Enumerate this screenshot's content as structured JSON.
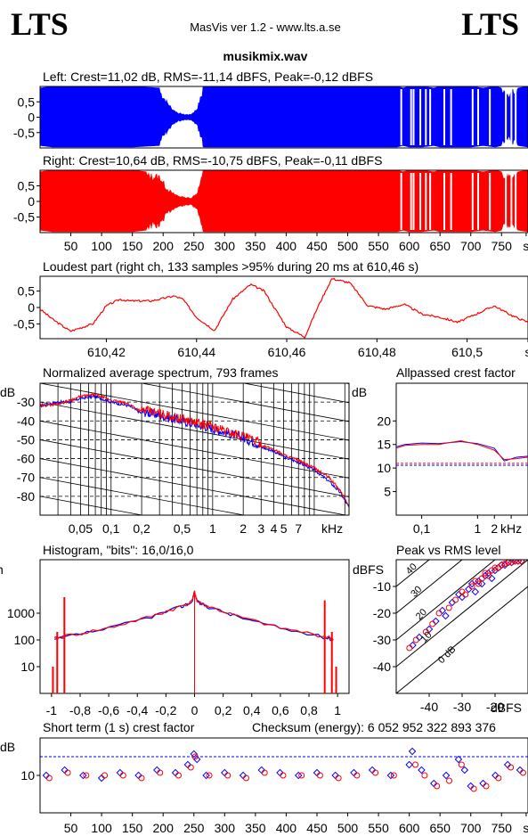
{
  "header": {
    "logo_left": "LTS",
    "logo_right": "LTS",
    "app_title": "MasVis ver 1.2 - www.lts.a.se",
    "file_name": "musikmix.wav"
  },
  "colors": {
    "left": "#0000ff",
    "right": "#ff0000",
    "axis": "#000000",
    "grid": "#000000"
  },
  "chart_data": [
    {
      "id": "left-waveform",
      "type": "area",
      "title": "Left: Crest=11,02 dB, RMS=-11,14 dBFS, Peak=-0,12 dBFS",
      "ytick_labels": [
        "0,5",
        "0",
        "-0,5"
      ],
      "yticks": [
        0.5,
        0,
        -0.5
      ],
      "xlim": [
        0,
        793
      ],
      "ylim": [
        -1,
        1
      ],
      "envelope": {
        "x": [
          0,
          20,
          60,
          100,
          150,
          195,
          205,
          215,
          225,
          235,
          245,
          255,
          265,
          275,
          300,
          400,
          500,
          580,
          590,
          600,
          620,
          640,
          650,
          660,
          680,
          700,
          720,
          740,
          760,
          793
        ],
        "amplitude": [
          0.95,
          1,
          1,
          1,
          1,
          0.95,
          0.6,
          0.3,
          0.15,
          0.1,
          0.1,
          0.3,
          1,
          1,
          1,
          1,
          1,
          1,
          0.95,
          1,
          1,
          0.95,
          1,
          1,
          1,
          1,
          0.95,
          1,
          0.9,
          1
        ]
      },
      "gaps_x": [
        587,
        603,
        607,
        618,
        627,
        634,
        657,
        668,
        703,
        712,
        731,
        757,
        766,
        773
      ]
    },
    {
      "id": "right-waveform",
      "type": "area",
      "title": "Right: Crest=10,64 dB, RMS=-10,75 dBFS, Peak=-0,11 dBFS",
      "ytick_labels": [
        "0,5",
        "0",
        "-0,5"
      ],
      "yticks": [
        0.5,
        0,
        -0.5
      ],
      "xlim": [
        0,
        793
      ],
      "ylim": [
        -1,
        1
      ],
      "xtick_labels": [
        "50",
        "100",
        "150",
        "200",
        "250",
        "300",
        "350",
        "400",
        "450",
        "500",
        "550",
        "600",
        "650",
        "700",
        "750",
        "s"
      ],
      "xticks": [
        50,
        100,
        150,
        200,
        250,
        300,
        350,
        400,
        450,
        500,
        550,
        600,
        650,
        700,
        750,
        790
      ],
      "envelope": {
        "x": [
          0,
          20,
          60,
          100,
          150,
          195,
          205,
          215,
          225,
          235,
          245,
          255,
          265,
          275,
          300,
          400,
          500,
          580,
          590,
          600,
          620,
          640,
          650,
          660,
          680,
          700,
          720,
          740,
          760,
          793
        ],
        "amplitude": [
          0.95,
          1,
          1,
          1,
          1,
          0.9,
          0.5,
          0.3,
          0.2,
          0.15,
          0.12,
          0.3,
          1,
          1,
          1,
          1,
          1,
          1,
          0.95,
          1,
          1,
          0.95,
          1,
          1,
          1,
          1,
          0.95,
          1,
          0.9,
          1
        ]
      },
      "gaps_x": [
        587,
        603,
        607,
        618,
        627,
        634,
        657,
        668,
        703,
        712,
        731,
        757,
        766,
        773
      ]
    },
    {
      "id": "loudest-part",
      "type": "line",
      "title": "Loudest part (right ch, 133 samples >95% during 20 ms at 610,46 s)",
      "ytick_labels": [
        "0,5",
        "0",
        "-0,5"
      ],
      "yticks": [
        0.5,
        0,
        -0.5
      ],
      "xtick_labels": [
        "610,42",
        "610,44",
        "610,46",
        "610,48",
        "610,5",
        "s"
      ],
      "xticks": [
        610.42,
        610.44,
        610.46,
        610.48,
        610.5,
        610.5135
      ],
      "xlim": [
        610.4053,
        610.5135
      ],
      "ylim": [
        -0.95,
        0.95
      ],
      "x": [
        610.4053,
        610.408,
        610.412,
        610.417,
        610.42,
        610.423,
        610.425,
        610.43,
        610.435,
        610.437,
        610.44,
        610.444,
        610.448,
        610.452,
        610.455,
        610.457,
        610.46,
        610.464,
        610.467,
        610.47,
        610.474,
        610.478,
        610.482,
        610.486,
        610.49,
        610.494,
        610.498,
        610.502,
        610.506,
        610.51,
        610.5135
      ],
      "y": [
        -0.05,
        -0.35,
        -0.72,
        -0.5,
        0.05,
        0.25,
        0.2,
        0.2,
        0.35,
        0.25,
        -0.3,
        -0.7,
        0.25,
        0.7,
        0.5,
        0.05,
        -0.6,
        -0.9,
        0.05,
        0.88,
        0.75,
        0.05,
        -0.05,
        0.1,
        -0.2,
        -0.3,
        -0.45,
        -0.2,
        0.05,
        -0.25,
        -0.45
      ]
    },
    {
      "id": "average-spectrum",
      "type": "line",
      "title": "Normalized average spectrum, 793 frames",
      "ylabel": "dB",
      "ytick_labels": [
        "-30",
        "-40",
        "-50",
        "-60",
        "-70",
        "-80"
      ],
      "yticks": [
        -30,
        -40,
        -50,
        -60,
        -70,
        -80
      ],
      "xtick_labels": [
        "0,05",
        "0,1",
        "0,2",
        "0,5",
        "1",
        "2",
        "3",
        "4",
        "5",
        "7",
        "kHz"
      ],
      "xticks": [
        0.05,
        0.1,
        0.2,
        0.5,
        1,
        2,
        3,
        4,
        5,
        7,
        15
      ],
      "xlim": [
        0.02,
        22
      ],
      "ylim": [
        -90,
        -20
      ],
      "series": [
        {
          "color": "blue",
          "x": [
            0.02,
            0.03,
            0.04,
            0.05,
            0.07,
            0.1,
            0.15,
            0.2,
            0.3,
            0.5,
            0.7,
            1,
            1.5,
            2,
            3,
            4,
            5,
            7,
            10,
            14,
            18,
            22
          ],
          "y": [
            -32,
            -30,
            -30,
            -28,
            -27,
            -30,
            -32,
            -36,
            -38,
            -41,
            -43,
            -45,
            -48,
            -50,
            -54,
            -56,
            -59,
            -62,
            -66,
            -72,
            -78,
            -86
          ]
        },
        {
          "color": "red",
          "x": [
            0.02,
            0.03,
            0.04,
            0.05,
            0.07,
            0.1,
            0.15,
            0.2,
            0.3,
            0.5,
            0.7,
            1,
            1.5,
            2,
            3,
            4,
            5,
            7,
            10,
            14,
            18,
            22
          ],
          "y": [
            -32,
            -31,
            -29,
            -27,
            -26,
            -29,
            -31,
            -35,
            -37,
            -40,
            -42,
            -44,
            -47,
            -49,
            -53,
            -55,
            -58,
            -61,
            -65,
            -70,
            -77,
            -85
          ]
        }
      ]
    },
    {
      "id": "allpassed-crest",
      "type": "line",
      "title": "Allpassed crest factor",
      "ylabel": "dB",
      "ytick_labels": [
        "20",
        "15",
        "10",
        "5"
      ],
      "yticks": [
        20,
        15,
        10,
        5
      ],
      "xtick_labels": [
        "0,1",
        "1",
        "2",
        "kHz"
      ],
      "xticks": [
        0.1,
        1,
        2,
        4
      ],
      "xlim": [
        0.035,
        8
      ],
      "ylim": [
        0,
        28
      ],
      "reference_lines": [
        11,
        10.6
      ],
      "series": [
        {
          "color": "blue",
          "x": [
            0.035,
            0.05,
            0.1,
            0.2,
            0.5,
            1,
            2,
            3,
            5,
            8
          ],
          "y": [
            14.5,
            15,
            15.3,
            15.2,
            15.6,
            15.2,
            14.2,
            11.5,
            12.3,
            12.5
          ]
        },
        {
          "color": "red",
          "x": [
            0.035,
            0.05,
            0.1,
            0.2,
            0.5,
            1,
            2,
            3,
            5,
            8
          ],
          "y": [
            14.2,
            14.8,
            15.0,
            15.0,
            15.8,
            15.0,
            13.8,
            11.8,
            12.0,
            12.3
          ]
        }
      ]
    },
    {
      "id": "histogram",
      "type": "line",
      "title": "Histogram, \"bits\": 16,0/16,0",
      "ylabel": "n",
      "ytick_labels": [
        "1000",
        "100",
        "10"
      ],
      "yticks": [
        1000,
        100,
        10
      ],
      "xtick_labels": [
        "-1",
        "-0,8",
        "-0,6",
        "-0,4",
        "-0,2",
        "0",
        "0,2",
        "0,4",
        "0,6",
        "0,8",
        "1"
      ],
      "xticks": [
        -1,
        -0.8,
        -0.6,
        -0.4,
        -0.2,
        0,
        0.2,
        0.4,
        0.6,
        0.8,
        1
      ],
      "xlim": [
        -1.08,
        1.08
      ],
      "ylim": [
        1,
        100000
      ],
      "scale": "log",
      "series": [
        {
          "color": "blue",
          "x": [
            -0.98,
            -0.9,
            -0.6,
            -0.3,
            -0.1,
            -0.02,
            0,
            0.02,
            0.1,
            0.3,
            0.6,
            0.9,
            0.98
          ],
          "y": [
            100,
            130,
            270,
            750,
            1700,
            2600,
            6000,
            2600,
            1700,
            750,
            270,
            130,
            100
          ]
        },
        {
          "color": "red",
          "x": [
            -0.98,
            -0.9,
            -0.6,
            -0.3,
            -0.1,
            -0.02,
            0,
            0.02,
            0.1,
            0.3,
            0.6,
            0.9,
            0.98
          ],
          "y": [
            110,
            140,
            280,
            760,
            1750,
            2700,
            6200,
            2700,
            1750,
            760,
            280,
            140,
            110
          ]
        }
      ],
      "spikes": [
        {
          "x": -0.96,
          "y": 200
        },
        {
          "x": -0.91,
          "y": 4000
        },
        {
          "x": -0.99,
          "y": 10
        },
        {
          "x": 0.91,
          "y": 3000
        },
        {
          "x": 0.96,
          "y": 200
        },
        {
          "x": 0.99,
          "y": 10
        }
      ]
    },
    {
      "id": "peak-vs-rms",
      "type": "scatter",
      "title": "Peak vs RMS level",
      "ylabel": "dBFS",
      "xlabel": "dBFS",
      "ytick_labels": [
        "-10",
        "-20",
        "-30",
        "-40"
      ],
      "yticks": [
        -10,
        -20,
        -30,
        -40
      ],
      "xtick_labels": [
        "-40",
        "-30",
        "-20"
      ],
      "xticks": [
        -40,
        -30,
        -20
      ],
      "xlim": [
        -50,
        -10
      ],
      "ylim": [
        -50,
        0
      ],
      "diagonal_labels": [
        "40",
        "30",
        "20",
        "10",
        "0 dB"
      ],
      "diagonal_offsets": [
        40,
        30,
        20,
        10,
        0
      ],
      "series": [
        {
          "color": "blue",
          "x": [
            -45,
            -43,
            -40,
            -38,
            -36,
            -35,
            -33,
            -31,
            -30,
            -28,
            -27,
            -26,
            -25,
            -24,
            -23,
            -22,
            -21,
            -20,
            -19,
            -18,
            -17,
            -16,
            -15,
            -14,
            -13,
            -12
          ],
          "y": [
            -32,
            -29,
            -26,
            -23,
            -19,
            -21,
            -16,
            -13,
            -14,
            -11,
            -9,
            -12,
            -8,
            -9,
            -6,
            -5,
            -7,
            -4,
            -3,
            -2,
            -2,
            -1,
            -1,
            -0.5,
            -0.5,
            -0.5
          ]
        },
        {
          "color": "red",
          "x": [
            -46,
            -44,
            -41,
            -39,
            -37,
            -34,
            -32,
            -30,
            -29,
            -27,
            -26,
            -25,
            -24,
            -23,
            -22,
            -21,
            -20,
            -19,
            -18,
            -17,
            -16,
            -15,
            -14,
            -13,
            -12
          ],
          "y": [
            -33,
            -30,
            -27,
            -24,
            -20,
            -18,
            -15,
            -12,
            -13,
            -10,
            -8,
            -9,
            -7,
            -5,
            -6,
            -4,
            -3,
            -3,
            -2,
            -1.5,
            -1,
            -1,
            -0.5,
            -0.5,
            -0.5
          ]
        }
      ]
    },
    {
      "id": "short-term-crest",
      "type": "scatter",
      "title": "Short term (1 s) crest factor",
      "annotation": "Checksum (energy):  6 052 952 322 893 376",
      "ylabel": "dB",
      "ytick_labels": [
        "10"
      ],
      "yticks": [
        10
      ],
      "xtick_labels": [
        "50",
        "100",
        "150",
        "200",
        "250",
        "300",
        "350",
        "400",
        "450",
        "500",
        "550",
        "600",
        "650",
        "700",
        "750",
        "s"
      ],
      "xticks": [
        50,
        100,
        150,
        200,
        250,
        300,
        350,
        400,
        450,
        500,
        550,
        600,
        650,
        700,
        750,
        790
      ],
      "xlim": [
        0,
        793
      ],
      "ylim": [
        3,
        17
      ],
      "reference_line": 13.5,
      "series": [
        {
          "color": "blue",
          "x": [
            10,
            40,
            70,
            100,
            130,
            160,
            190,
            220,
            240,
            250,
            255,
            270,
            300,
            330,
            360,
            390,
            420,
            450,
            480,
            510,
            540,
            570,
            600,
            605,
            620,
            640,
            660,
            680,
            690,
            700,
            720,
            740,
            760,
            780
          ],
          "y": [
            10,
            11,
            10,
            9.5,
            10.5,
            10,
            11,
            10.5,
            12,
            14,
            13,
            10,
            10.5,
            10,
            11,
            10.5,
            10,
            10.5,
            10,
            10.5,
            11,
            10,
            12,
            14.5,
            11,
            8.5,
            10,
            13,
            11,
            8,
            8.5,
            10,
            12,
            11
          ]
        },
        {
          "color": "red",
          "x": [
            15,
            45,
            75,
            105,
            135,
            165,
            195,
            225,
            245,
            252,
            275,
            305,
            335,
            365,
            395,
            425,
            455,
            485,
            515,
            545,
            575,
            610,
            625,
            645,
            665,
            685,
            705,
            725,
            745,
            765,
            785
          ],
          "y": [
            9.5,
            10.5,
            10,
            10,
            10,
            9.5,
            10.5,
            10,
            11.5,
            13.5,
            10,
            10,
            9.5,
            10.5,
            10,
            10,
            10,
            9.5,
            10,
            10.5,
            10,
            12,
            10,
            8,
            9,
            12,
            7.5,
            8,
            9.5,
            11.5,
            10.5
          ]
        }
      ]
    }
  ]
}
